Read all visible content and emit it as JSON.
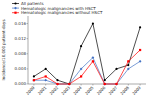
{
  "chart_data": {
    "type": "line",
    "y_label": "Incidence/10,000 patient-days",
    "x": [
      2000,
      2001,
      2002,
      2003,
      2004,
      2005,
      2006,
      2007,
      2008,
      2009
    ],
    "xlim": [
      1999.5,
      2009.5
    ],
    "xticks": [
      2000,
      2001,
      2002,
      2003,
      2004,
      2005,
      2006,
      2007,
      2008,
      2009
    ],
    "ylim": [
      0,
      0.018
    ],
    "yticks": [
      {
        "value": 0,
        "label": "0.000"
      },
      0.004,
      0.008,
      0.012,
      0.016
    ],
    "grid": false,
    "legend": "upper left",
    "series": [
      {
        "name": "All patients",
        "color": "#000000",
        "marker": "circle",
        "values": [
          0.002,
          0.004,
          0.001,
          0.0,
          0.01,
          0.016,
          0.001,
          0.004,
          0.005,
          0.015
        ]
      },
      {
        "name": "Hematologic malignancies with HSCT",
        "color": "#4472c4",
        "marker": "diamond",
        "values": [
          0.001,
          0.001,
          0.0,
          0.0,
          0.004,
          0.007,
          0.0,
          0.0,
          0.004,
          0.006
        ]
      },
      {
        "name": "Hematologic malignancies without HSCT",
        "color": "#ff0000",
        "marker": "square",
        "values": [
          0.001,
          0.002,
          0.0,
          0.0,
          0.002,
          0.006,
          0.0,
          0.0,
          0.006,
          0.009
        ]
      }
    ]
  }
}
